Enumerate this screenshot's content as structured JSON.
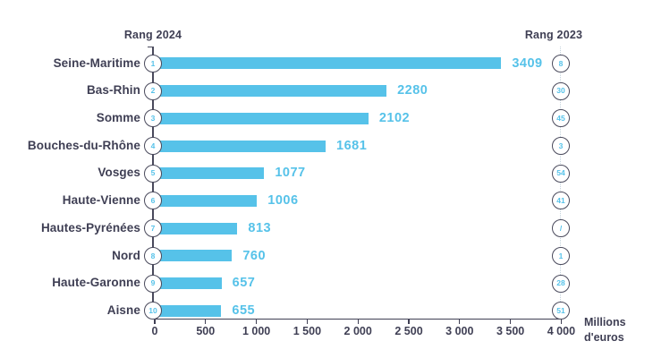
{
  "chart_data": {
    "type": "bar",
    "orientation": "horizontal",
    "title": "",
    "left_rank_header": "Rang 2024",
    "right_rank_header": "Rang 2023",
    "unit_line1": "Millions",
    "unit_line2": "d'euros",
    "categories": [
      "Seine-Maritime",
      "Bas-Rhin",
      "Somme",
      "Bouches-du-Rhône",
      "Vosges",
      "Haute-Vienne",
      "Hautes-Pyrénées",
      "Nord",
      "Haute-Garonne",
      "Aisne"
    ],
    "values": [
      3409,
      2280,
      2102,
      1681,
      1077,
      1006,
      813,
      760,
      657,
      655
    ],
    "rank_2024": [
      "1",
      "2",
      "3",
      "4",
      "5",
      "6",
      "7",
      "8",
      "9",
      "10"
    ],
    "rank_2023": [
      "8",
      "30",
      "45",
      "3",
      "54",
      "41",
      "/",
      "1",
      "28",
      "51"
    ],
    "x_ticks": [
      "0",
      "500",
      "1 000",
      "1 500",
      "2 000",
      "2 500",
      "3 000",
      "3 500",
      "4 000"
    ],
    "xlim": [
      0,
      4000
    ],
    "grid": false,
    "legend": false,
    "colors": {
      "bar": "#56C2E9",
      "value_text": "#56C2E9",
      "dark_text": "#3F3F54",
      "circle_stroke": "#4A4A5C",
      "dotted_line": "#C4D3DC",
      "background": "#FFFFFF"
    }
  }
}
